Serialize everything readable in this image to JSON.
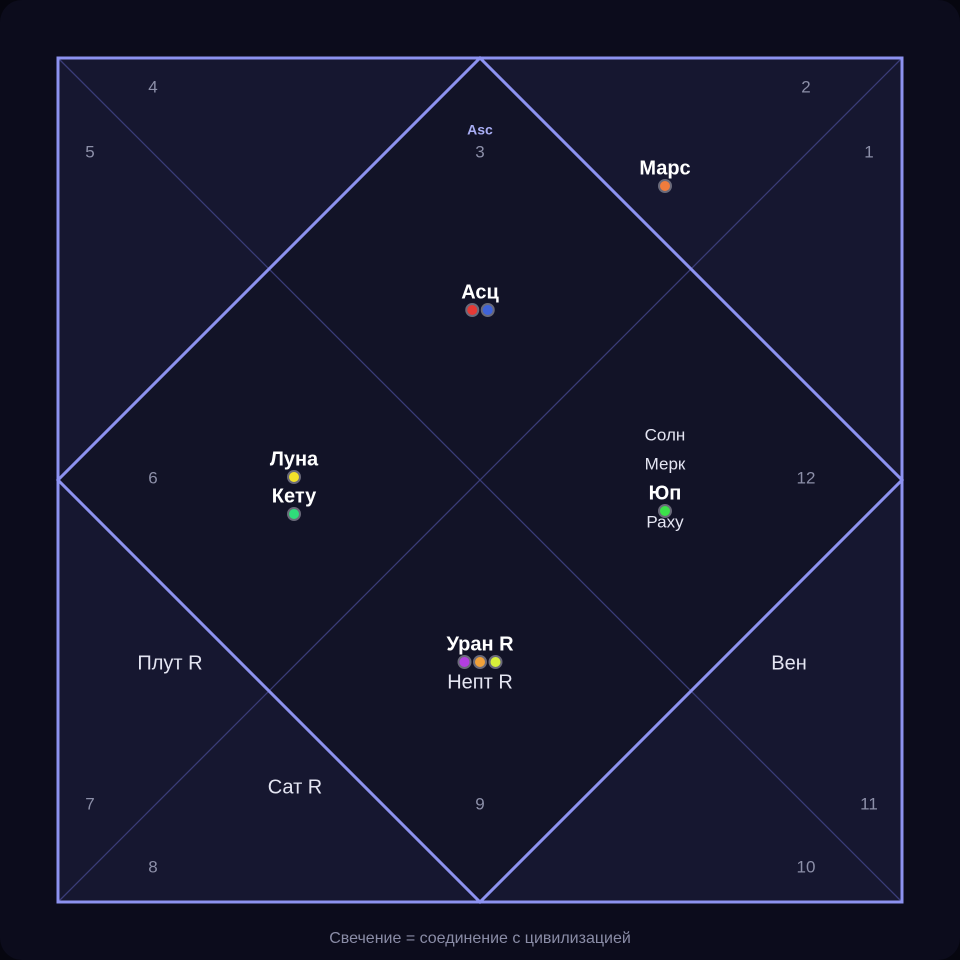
{
  "chart": {
    "houses": [
      1,
      2,
      3,
      4,
      5,
      6,
      7,
      8,
      9,
      10,
      11,
      12
    ],
    "asc_marker": "Asc",
    "planets": [
      {
        "label": "Марс",
        "bold": true,
        "dots": [
          "#f07c3c"
        ]
      },
      {
        "label": "Асц",
        "bold": true,
        "dots": [
          "#e53935",
          "#3f63d9"
        ]
      },
      {
        "label": "Луна",
        "bold": true,
        "dots": [
          "#f2e22a"
        ]
      },
      {
        "label": "Кету",
        "bold": true,
        "dots": [
          "#2fdc7a"
        ]
      },
      {
        "label": "Солн",
        "bold": false,
        "dots": []
      },
      {
        "label": "Мерк",
        "bold": false,
        "dots": []
      },
      {
        "label": "Юп",
        "bold": true,
        "dots": [
          "#3ce04a"
        ]
      },
      {
        "label": "Раху",
        "bold": false,
        "dots": []
      },
      {
        "label": "Уран R",
        "bold": true,
        "dots": [
          "#b23ee0",
          "#f0a13a",
          "#d8f03a"
        ]
      },
      {
        "label": "Непт R",
        "bold": false,
        "dots": []
      },
      {
        "label": "Плут R",
        "bold": false,
        "dots": []
      },
      {
        "label": "Вен",
        "bold": false,
        "dots": []
      },
      {
        "label": "Сат R",
        "bold": false,
        "dots": []
      }
    ],
    "caption": "Свечение = соединение с цивилизацией"
  }
}
